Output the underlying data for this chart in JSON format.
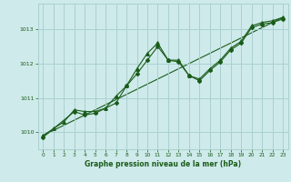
{
  "title": "Graphe pression niveau de la mer (hPa)",
  "bg_color": "#ceeaea",
  "grid_color": "#aad0d0",
  "line_color": "#1a5c1a",
  "xlim": [
    -0.5,
    23.5
  ],
  "ylim": [
    1009.5,
    1013.75
  ],
  "yticks": [
    1010,
    1011,
    1012,
    1013
  ],
  "xticks": [
    0,
    1,
    2,
    3,
    4,
    5,
    6,
    7,
    8,
    9,
    10,
    11,
    12,
    13,
    14,
    15,
    16,
    17,
    18,
    19,
    20,
    21,
    22,
    23
  ],
  "series1_x": [
    0,
    1,
    2,
    3,
    4,
    5,
    6,
    7,
    8,
    9,
    10,
    11,
    12,
    13,
    14,
    15,
    16,
    17,
    18,
    19,
    20,
    21,
    22,
    23
  ],
  "series1_y": [
    1009.9,
    1010.1,
    1010.3,
    1010.65,
    1010.6,
    1010.6,
    1010.7,
    1011.05,
    1011.35,
    1011.85,
    1012.3,
    1012.6,
    1012.1,
    1012.1,
    1011.65,
    1011.55,
    1011.85,
    1012.1,
    1012.45,
    1012.65,
    1013.1,
    1013.2,
    1013.25,
    1013.35
  ],
  "series2_x": [
    0,
    3,
    4,
    5,
    7,
    8,
    9,
    10,
    11,
    12,
    13,
    14,
    15,
    16,
    17,
    18,
    19,
    20,
    21,
    22,
    23
  ],
  "series2_y": [
    1009.85,
    1010.6,
    1010.5,
    1010.55,
    1010.85,
    1011.35,
    1011.7,
    1012.1,
    1012.5,
    1012.1,
    1012.05,
    1011.65,
    1011.5,
    1011.8,
    1012.05,
    1012.4,
    1012.6,
    1013.05,
    1013.15,
    1013.2,
    1013.3
  ],
  "trend_x": [
    0,
    23
  ],
  "trend_y": [
    1009.9,
    1013.35
  ]
}
